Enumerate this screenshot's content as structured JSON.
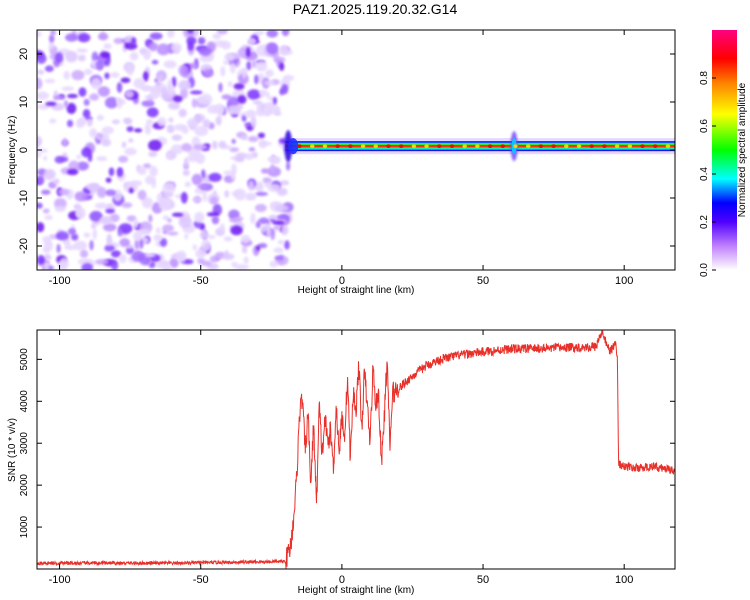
{
  "title": "PAZ1.2025.119.20.32.G14",
  "chart_data": [
    {
      "type": "heatmap",
      "xlabel": "Height of straight line (km)",
      "ylabel": "Frequency (Hz)",
      "xlim": [
        -108,
        118
      ],
      "ylim": [
        -25,
        25
      ],
      "xticks": [
        -100,
        -50,
        0,
        50,
        100
      ],
      "yticks": [
        -20,
        -10,
        0,
        10,
        20
      ],
      "noise_region_x": [
        -108,
        -20
      ],
      "signal_line": {
        "x_start": -20,
        "x_end": 118,
        "frequency": 0.8
      },
      "colorbar": {
        "label": "Normalized spectral amplitude",
        "range": [
          0.0,
          1.0
        ],
        "ticks": [
          0.0,
          0.2,
          0.4,
          0.6,
          0.8
        ],
        "tick_labels": [
          "0.0",
          "0.2",
          "0.4",
          "0.6",
          "0.8"
        ],
        "colors": [
          "#ffffff",
          "#c080ff",
          "#5000ff",
          "#0000ff",
          "#00ffff",
          "#00ff00",
          "#ffff00",
          "#ff8000",
          "#ff0000",
          "#ff0080"
        ]
      }
    },
    {
      "type": "line",
      "xlabel": "Height of straight line (km)",
      "ylabel": "SNR (10 * v/v)",
      "xlim": [
        -108,
        118
      ],
      "ylim": [
        0,
        5700
      ],
      "xticks": [
        -100,
        -50,
        0,
        50,
        100
      ],
      "yticks": [
        1000,
        2000,
        3000,
        4000,
        5000
      ],
      "color": "#e8302a",
      "x": [
        -108,
        -60,
        -20,
        -18,
        -17,
        -16,
        -15,
        -14,
        -13,
        -12,
        -11,
        -10,
        -9,
        -8,
        -7,
        -6,
        -5,
        -4,
        -3,
        -2,
        -1,
        0,
        1,
        2,
        3,
        4,
        5,
        6,
        7,
        8,
        9,
        10,
        11,
        12,
        13,
        14,
        15,
        16,
        17,
        18,
        20,
        25,
        30,
        35,
        40,
        50,
        60,
        70,
        80,
        90,
        92,
        95,
        97,
        97.6,
        98,
        100,
        105,
        110,
        118
      ],
      "y": [
        140,
        140,
        180,
        600,
        1300,
        2200,
        3700,
        4100,
        2800,
        3700,
        2000,
        3500,
        1500,
        3900,
        2700,
        3600,
        3000,
        3300,
        2400,
        3900,
        2800,
        3600,
        3200,
        4600,
        2600,
        4200,
        3800,
        4900,
        3300,
        4700,
        3900,
        3000,
        4800,
        3900,
        4200,
        2500,
        3600,
        5000,
        2900,
        4200,
        4300,
        4600,
        4850,
        5000,
        5080,
        5180,
        5250,
        5260,
        5280,
        5300,
        5650,
        5200,
        5350,
        5100,
        2500,
        2450,
        2400,
        2450,
        2350
      ]
    }
  ]
}
